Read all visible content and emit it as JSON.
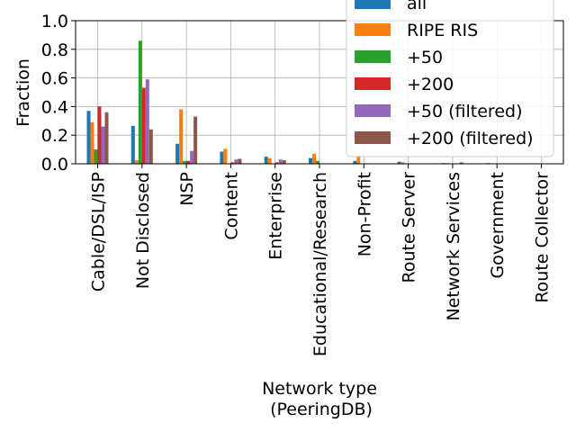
{
  "chart_data": {
    "type": "bar",
    "xlabel": "Network type\n(PeeringDB)",
    "xlabel_lines": [
      "Network type",
      "(PeeringDB)"
    ],
    "ylabel": "Fraction",
    "ylim": [
      0,
      1.0
    ],
    "yticks": [
      "0.0",
      "0.2",
      "0.4",
      "0.6",
      "0.8",
      "1.0"
    ],
    "grid": true,
    "legend_position": "top-right",
    "categories": [
      "Cable/DSL/ISP",
      "Not Disclosed",
      "NSP",
      "Content",
      "Enterprise",
      "Educational/Research",
      "Non-Profit",
      "Route Server",
      "Network Services",
      "Government",
      "Route Collector"
    ],
    "series": [
      {
        "name": "all",
        "color": "#1f77b4",
        "values": [
          0.37,
          0.265,
          0.14,
          0.085,
          0.05,
          0.04,
          0.02,
          0.015,
          0.005,
          0.005,
          0.002
        ]
      },
      {
        "name": "RIPE RIS",
        "color": "#ff7f0e",
        "values": [
          0.29,
          0.025,
          0.38,
          0.105,
          0.04,
          0.07,
          0.06,
          0.01,
          0.005,
          0.0,
          0.0
        ]
      },
      {
        "name": "+50",
        "color": "#2ca02c",
        "values": [
          0.1,
          0.86,
          0.02,
          0.0,
          0.0,
          0.02,
          0.0,
          0.0,
          0.0,
          0.0,
          0.0
        ]
      },
      {
        "name": "+200",
        "color": "#d62728",
        "values": [
          0.4,
          0.53,
          0.02,
          0.01,
          0.01,
          0.0,
          0.0,
          0.0,
          0.0,
          0.0,
          0.0
        ]
      },
      {
        "name": "+50 (filtered)",
        "color": "#9467bd",
        "values": [
          0.26,
          0.59,
          0.09,
          0.03,
          0.03,
          0.0,
          0.0,
          0.0,
          0.0,
          0.0,
          0.0
        ]
      },
      {
        "name": "+200 (filtered)",
        "color": "#8c564b",
        "values": [
          0.36,
          0.24,
          0.33,
          0.035,
          0.025,
          0.0,
          0.0,
          0.0,
          0.01,
          0.0,
          0.0
        ]
      }
    ]
  }
}
